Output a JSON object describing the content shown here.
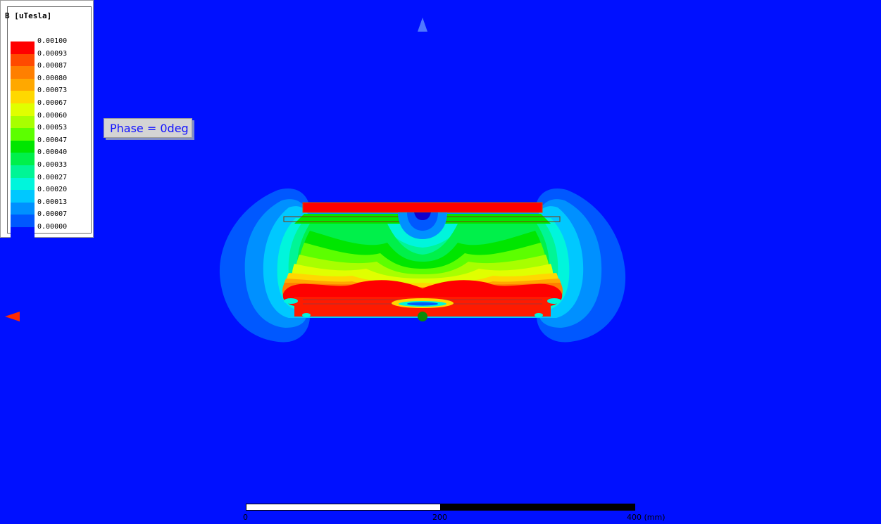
{
  "legend": {
    "title": "B [uTesla]",
    "entries": [
      {
        "value": "0.00100",
        "color": "#ff0000"
      },
      {
        "value": "0.00093",
        "color": "#ff4a00"
      },
      {
        "value": "0.00087",
        "color": "#ff7f00"
      },
      {
        "value": "0.00080",
        "color": "#ffa800"
      },
      {
        "value": "0.00073",
        "color": "#ffd800"
      },
      {
        "value": "0.00067",
        "color": "#e0ff00"
      },
      {
        "value": "0.00060",
        "color": "#a8ff00"
      },
      {
        "value": "0.00053",
        "color": "#5cff00"
      },
      {
        "value": "0.00047",
        "color": "#00e600"
      },
      {
        "value": "0.00040",
        "color": "#00f04a"
      },
      {
        "value": "0.00033",
        "color": "#00f596"
      },
      {
        "value": "0.00027",
        "color": "#00f5dc"
      },
      {
        "value": "0.00020",
        "color": "#00c8ff"
      },
      {
        "value": "0.00013",
        "color": "#0090ff"
      },
      {
        "value": "0.00007",
        "color": "#0058ff"
      },
      {
        "value": "0.00000",
        "color": "#0010ff"
      }
    ]
  },
  "phase_label": "Phase = 0deg",
  "scale": {
    "labels": [
      "0",
      "200",
      "400 (mm)"
    ]
  },
  "colors": {
    "background": "#0010ff",
    "axis_z": "#4f78ff",
    "axis_x": "#ff2a00",
    "axis_origin": "#0a8a0a"
  },
  "icons": [
    "axis-z-arrow-icon",
    "axis-x-arrow-icon",
    "origin-marker-icon"
  ]
}
